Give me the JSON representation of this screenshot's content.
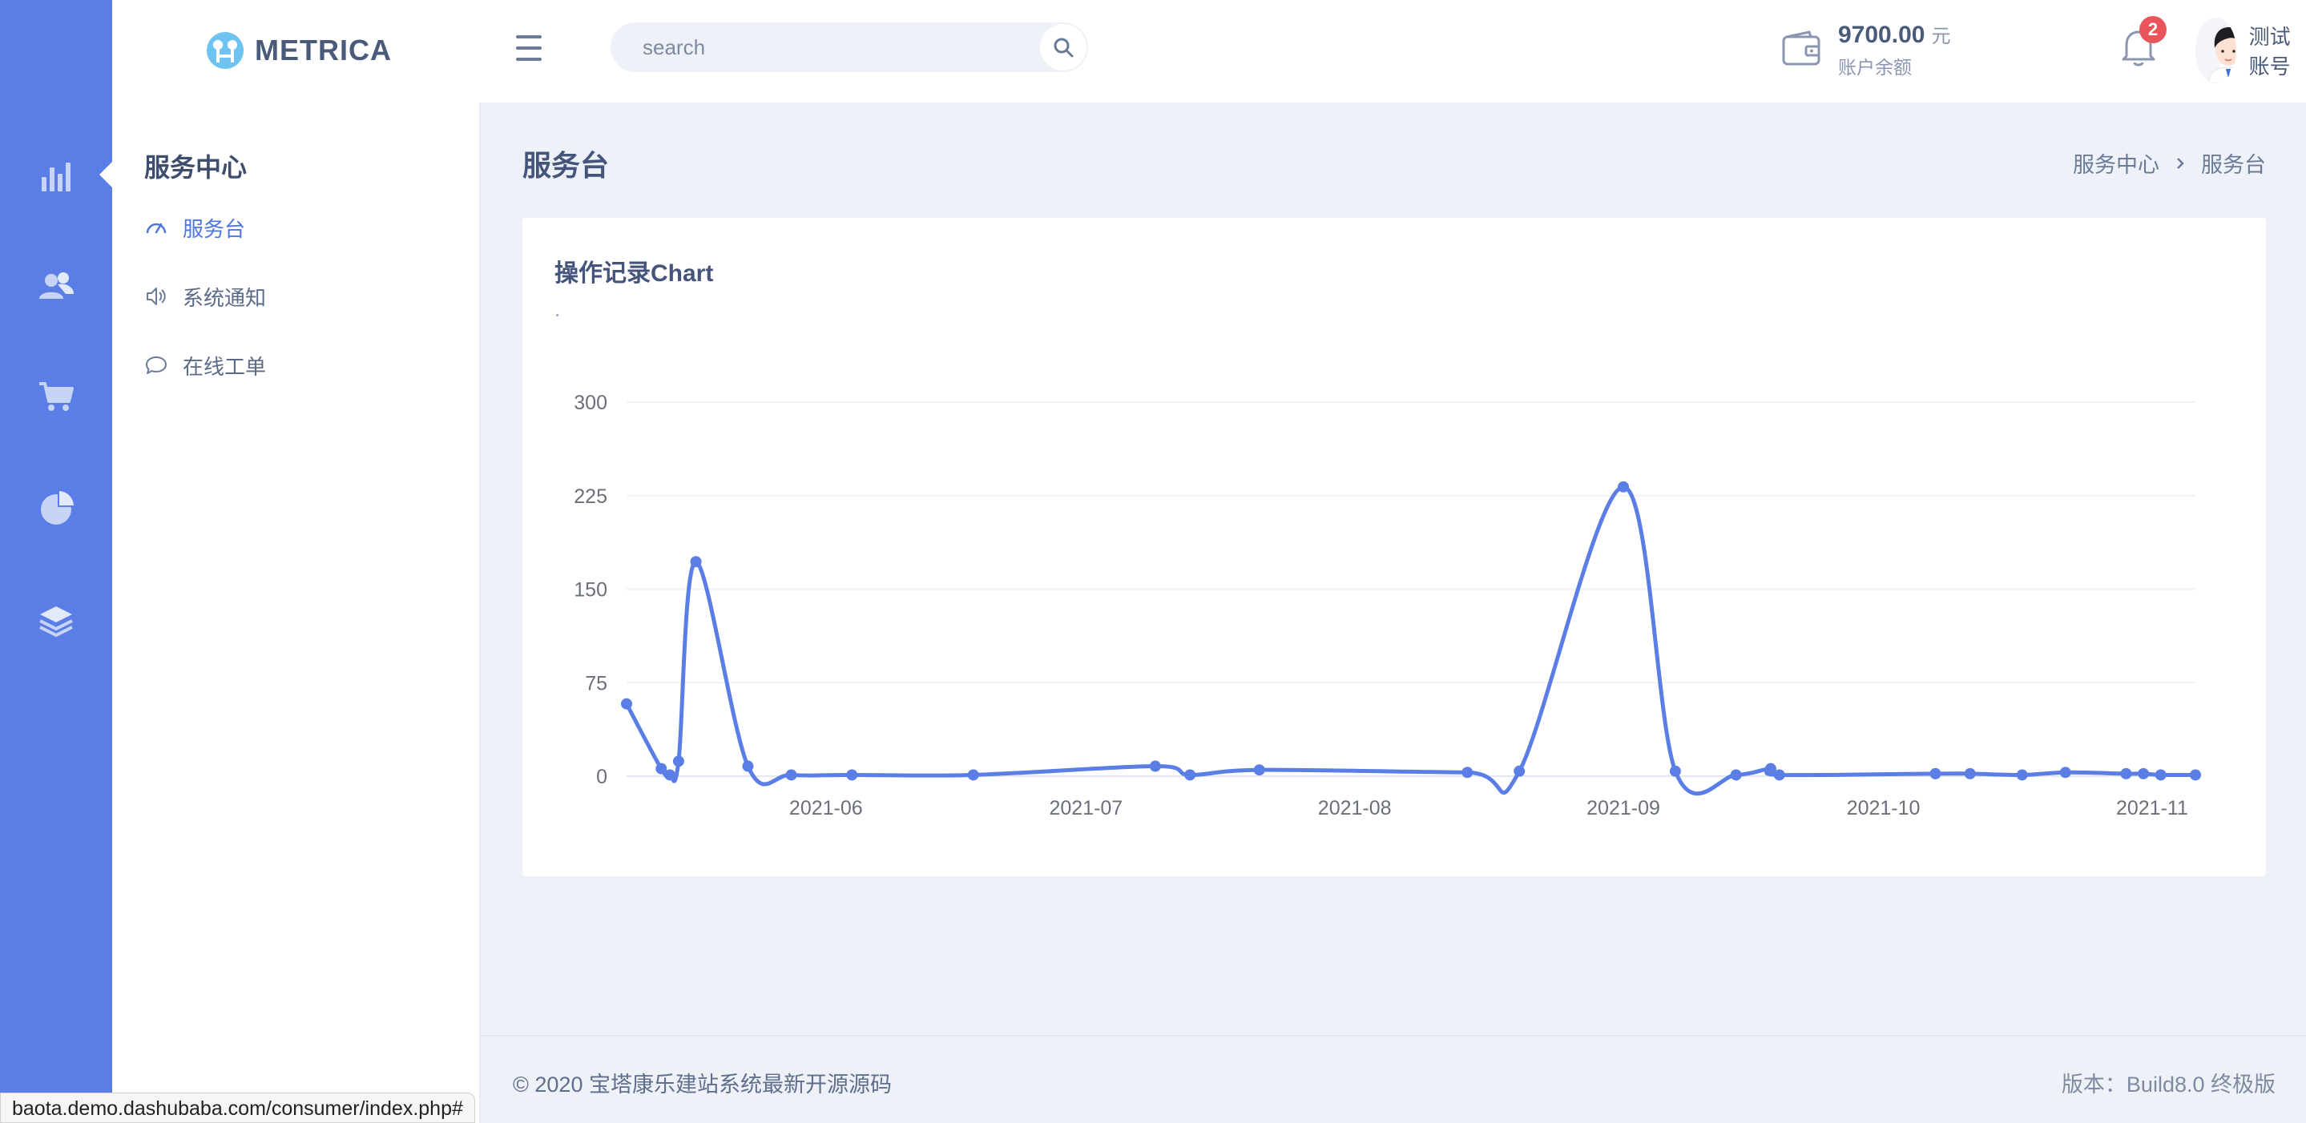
{
  "brand": {
    "name": "METRICA"
  },
  "search": {
    "placeholder": "search"
  },
  "wallet": {
    "amount": "9700.00",
    "unit": "元",
    "label": "账户余额"
  },
  "notifications": {
    "count": "2"
  },
  "user": {
    "name": "测试账号"
  },
  "rail": {
    "items": [
      {
        "icon": "bar-chart-icon"
      },
      {
        "icon": "users-icon"
      },
      {
        "icon": "cart-icon"
      },
      {
        "icon": "pie-chart-icon"
      },
      {
        "icon": "layers-icon"
      }
    ]
  },
  "submenu": {
    "title": "服务中心",
    "items": [
      {
        "label": "服务台",
        "icon": "gauge-icon",
        "active": true
      },
      {
        "label": "系统通知",
        "icon": "speaker-icon",
        "active": false
      },
      {
        "label": "在线工单",
        "icon": "chat-bubble-icon",
        "active": false
      }
    ]
  },
  "page": {
    "title": "服务台",
    "breadcrumb": [
      "服务中心",
      "服务台"
    ]
  },
  "card": {
    "title": "操作记录Chart"
  },
  "chart_data": {
    "type": "line",
    "title": "操作记录Chart",
    "xlabel": "",
    "ylabel": "",
    "ylim": [
      0,
      300
    ],
    "yticks": [
      0,
      75,
      150,
      225,
      300
    ],
    "xticks": [
      "2021-06-01",
      "2021-07-01",
      "2021-08-01",
      "2021-09-01",
      "2021-10-01",
      "2021-11-01"
    ],
    "xtick_labels": [
      "2021-06",
      "2021-07",
      "2021-08",
      "2021-09",
      "2021-10",
      "2021-11"
    ],
    "xlim": [
      "2021-05-09",
      "2021-11-06"
    ],
    "grid": true,
    "color": "#5a7ee6",
    "series": [
      {
        "points": [
          [
            "2021-05-09",
            58
          ],
          [
            "2021-05-13",
            6
          ],
          [
            "2021-05-14",
            1
          ],
          [
            "2021-05-15",
            12
          ],
          [
            "2021-05-17",
            172
          ],
          [
            "2021-05-23",
            8
          ],
          [
            "2021-05-28",
            1
          ],
          [
            "2021-06-04",
            1
          ],
          [
            "2021-06-18",
            1
          ],
          [
            "2021-07-09",
            8
          ],
          [
            "2021-07-13",
            1
          ],
          [
            "2021-07-21",
            5
          ],
          [
            "2021-08-14",
            3
          ],
          [
            "2021-08-20",
            4
          ],
          [
            "2021-09-01",
            232
          ],
          [
            "2021-09-07",
            4
          ],
          [
            "2021-09-14",
            1
          ],
          [
            "2021-09-18",
            6
          ],
          [
            "2021-09-19",
            1
          ],
          [
            "2021-10-07",
            2
          ],
          [
            "2021-10-11",
            2
          ],
          [
            "2021-10-17",
            1
          ],
          [
            "2021-10-22",
            3
          ],
          [
            "2021-10-29",
            2
          ],
          [
            "2021-10-31",
            2
          ],
          [
            "2021-11-02",
            1
          ],
          [
            "2021-11-06",
            1
          ]
        ]
      }
    ]
  },
  "footer": {
    "copyright": "© 2020 宝塔康乐建站系统最新开源源码",
    "version": "版本：Build8.0 终极版"
  },
  "status_bar": {
    "url": "baota.demo.dashubaba.com/consumer/index.php#"
  }
}
